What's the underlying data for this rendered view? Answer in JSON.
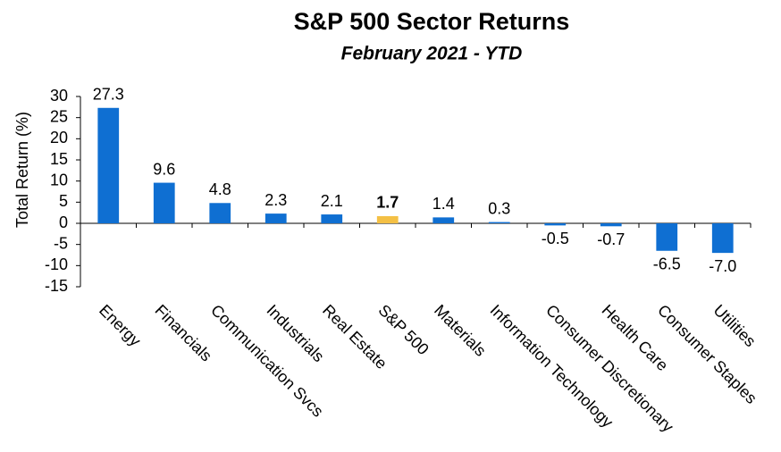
{
  "chart_data": {
    "type": "bar",
    "title": "S&P 500 Sector Returns",
    "subtitle": "February 2021 - YTD",
    "y_label": "Total Return (%)",
    "categories": [
      "Energy",
      "Financials",
      "Communication Svcs",
      "Industrials",
      "Real Estate",
      "S&P 500",
      "Materials",
      "Information Technology",
      "Consumer Discretionary",
      "Health Care",
      "Consumer Staples",
      "Utilities"
    ],
    "values": [
      27.3,
      9.6,
      4.8,
      2.3,
      2.1,
      1.7,
      1.4,
      0.3,
      -0.5,
      -0.7,
      -6.5,
      -7.0
    ],
    "value_labels": [
      "27.3",
      "9.6",
      "4.8",
      "2.3",
      "2.1",
      "1.7",
      "1.4",
      "0.3",
      "-0.5",
      "-0.7",
      "-6.5",
      "-7.0"
    ],
    "colors": [
      "#0f6fd2",
      "#0f6fd2",
      "#0f6fd2",
      "#0f6fd2",
      "#0f6fd2",
      "#f4c045",
      "#0f6fd2",
      "#0f6fd2",
      "#0f6fd2",
      "#0f6fd2",
      "#0f6fd2",
      "#0f6fd2"
    ],
    "ylim": [
      -15,
      30
    ],
    "yticks": [
      -15,
      -10,
      -5,
      0,
      5,
      10,
      15,
      20,
      25,
      30
    ],
    "grid": false
  }
}
